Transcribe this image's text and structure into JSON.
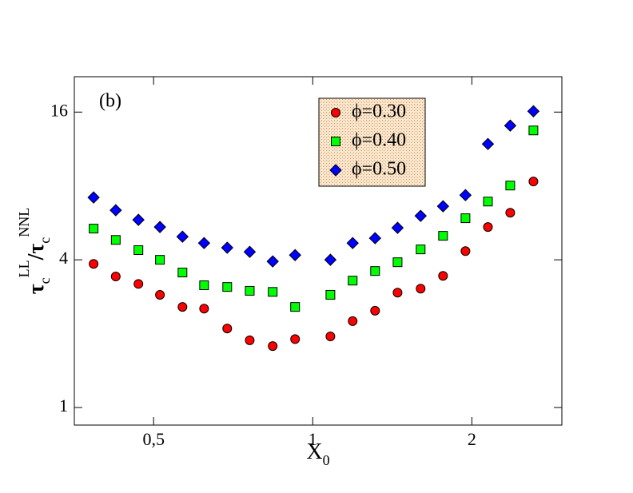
{
  "chart_data": {
    "type": "scatter",
    "annotation": "(b)",
    "x_label": [
      "X",
      "0"
    ],
    "y_label": [
      "τ",
      "c",
      "LL",
      "/τ",
      "c",
      "NNL"
    ],
    "x": [
      0.385,
      0.424,
      0.468,
      0.514,
      0.567,
      0.623,
      0.689,
      0.76,
      0.84,
      0.926,
      1.08,
      1.19,
      1.312,
      1.447,
      1.6,
      1.764,
      1.945,
      2.145,
      2.364,
      2.615
    ],
    "series": [
      {
        "name": "ϕ=0.30",
        "color": "#ff0000",
        "marker": "circle",
        "values": [
          3.85,
          3.42,
          3.19,
          2.88,
          2.57,
          2.53,
          2.1,
          1.88,
          1.78,
          1.9,
          1.95,
          2.25,
          2.48,
          2.94,
          3.05,
          3.44,
          4.34,
          5.44,
          6.22,
          8.34
        ]
      },
      {
        "name": "ϕ=0.40",
        "color": "#00ff00",
        "marker": "square",
        "values": [
          5.36,
          4.82,
          4.38,
          4.0,
          3.55,
          3.15,
          3.1,
          2.99,
          2.96,
          2.57,
          2.88,
          3.29,
          3.6,
          3.91,
          4.41,
          5.01,
          5.91,
          6.91,
          8.03,
          13.47
        ]
      },
      {
        "name": "ϕ=0.50",
        "color": "#0000ff",
        "marker": "diamond",
        "values": [
          7.18,
          6.37,
          5.82,
          5.44,
          4.97,
          4.68,
          4.48,
          4.31,
          3.94,
          4.18,
          4.0,
          4.68,
          4.9,
          5.4,
          6.04,
          6.61,
          7.34,
          11.86,
          14.09,
          16.12
        ]
      }
    ],
    "xlim": [
      0.354,
      2.96
    ],
    "ylim": [
      0.848,
      22.3
    ],
    "xticks": [
      {
        "value": 0.5,
        "label": "0,5"
      },
      1,
      2
    ],
    "yticks": [
      1,
      4,
      16
    ],
    "xlog": true,
    "ylog": true,
    "grid": false,
    "legend": "upper center"
  }
}
